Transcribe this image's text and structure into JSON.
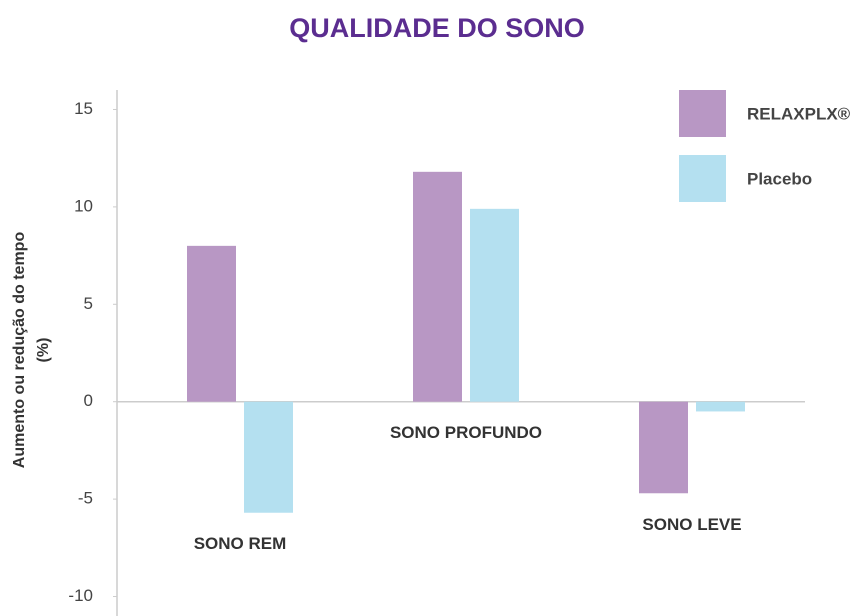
{
  "chart_data": {
    "type": "bar",
    "title": "QUALIDADE DO SONO",
    "ylabel": [
      "Aumento ou redução do tempo",
      "(%)"
    ],
    "categories": [
      "SONO REM",
      "SONO PROFUNDO",
      "SONO LEVE"
    ],
    "series": [
      {
        "name": "RELAXPLX®",
        "color": "#b897c4",
        "values": [
          8,
          11.8,
          -4.7
        ]
      },
      {
        "name": "Placebo",
        "color": "#b4e0f0",
        "values": [
          -5.7,
          9.9,
          -0.5
        ]
      }
    ],
    "ylim": [
      -11,
      16
    ],
    "yticks": [
      -10,
      -5,
      0,
      5,
      10,
      15
    ],
    "legend": "top-right"
  }
}
